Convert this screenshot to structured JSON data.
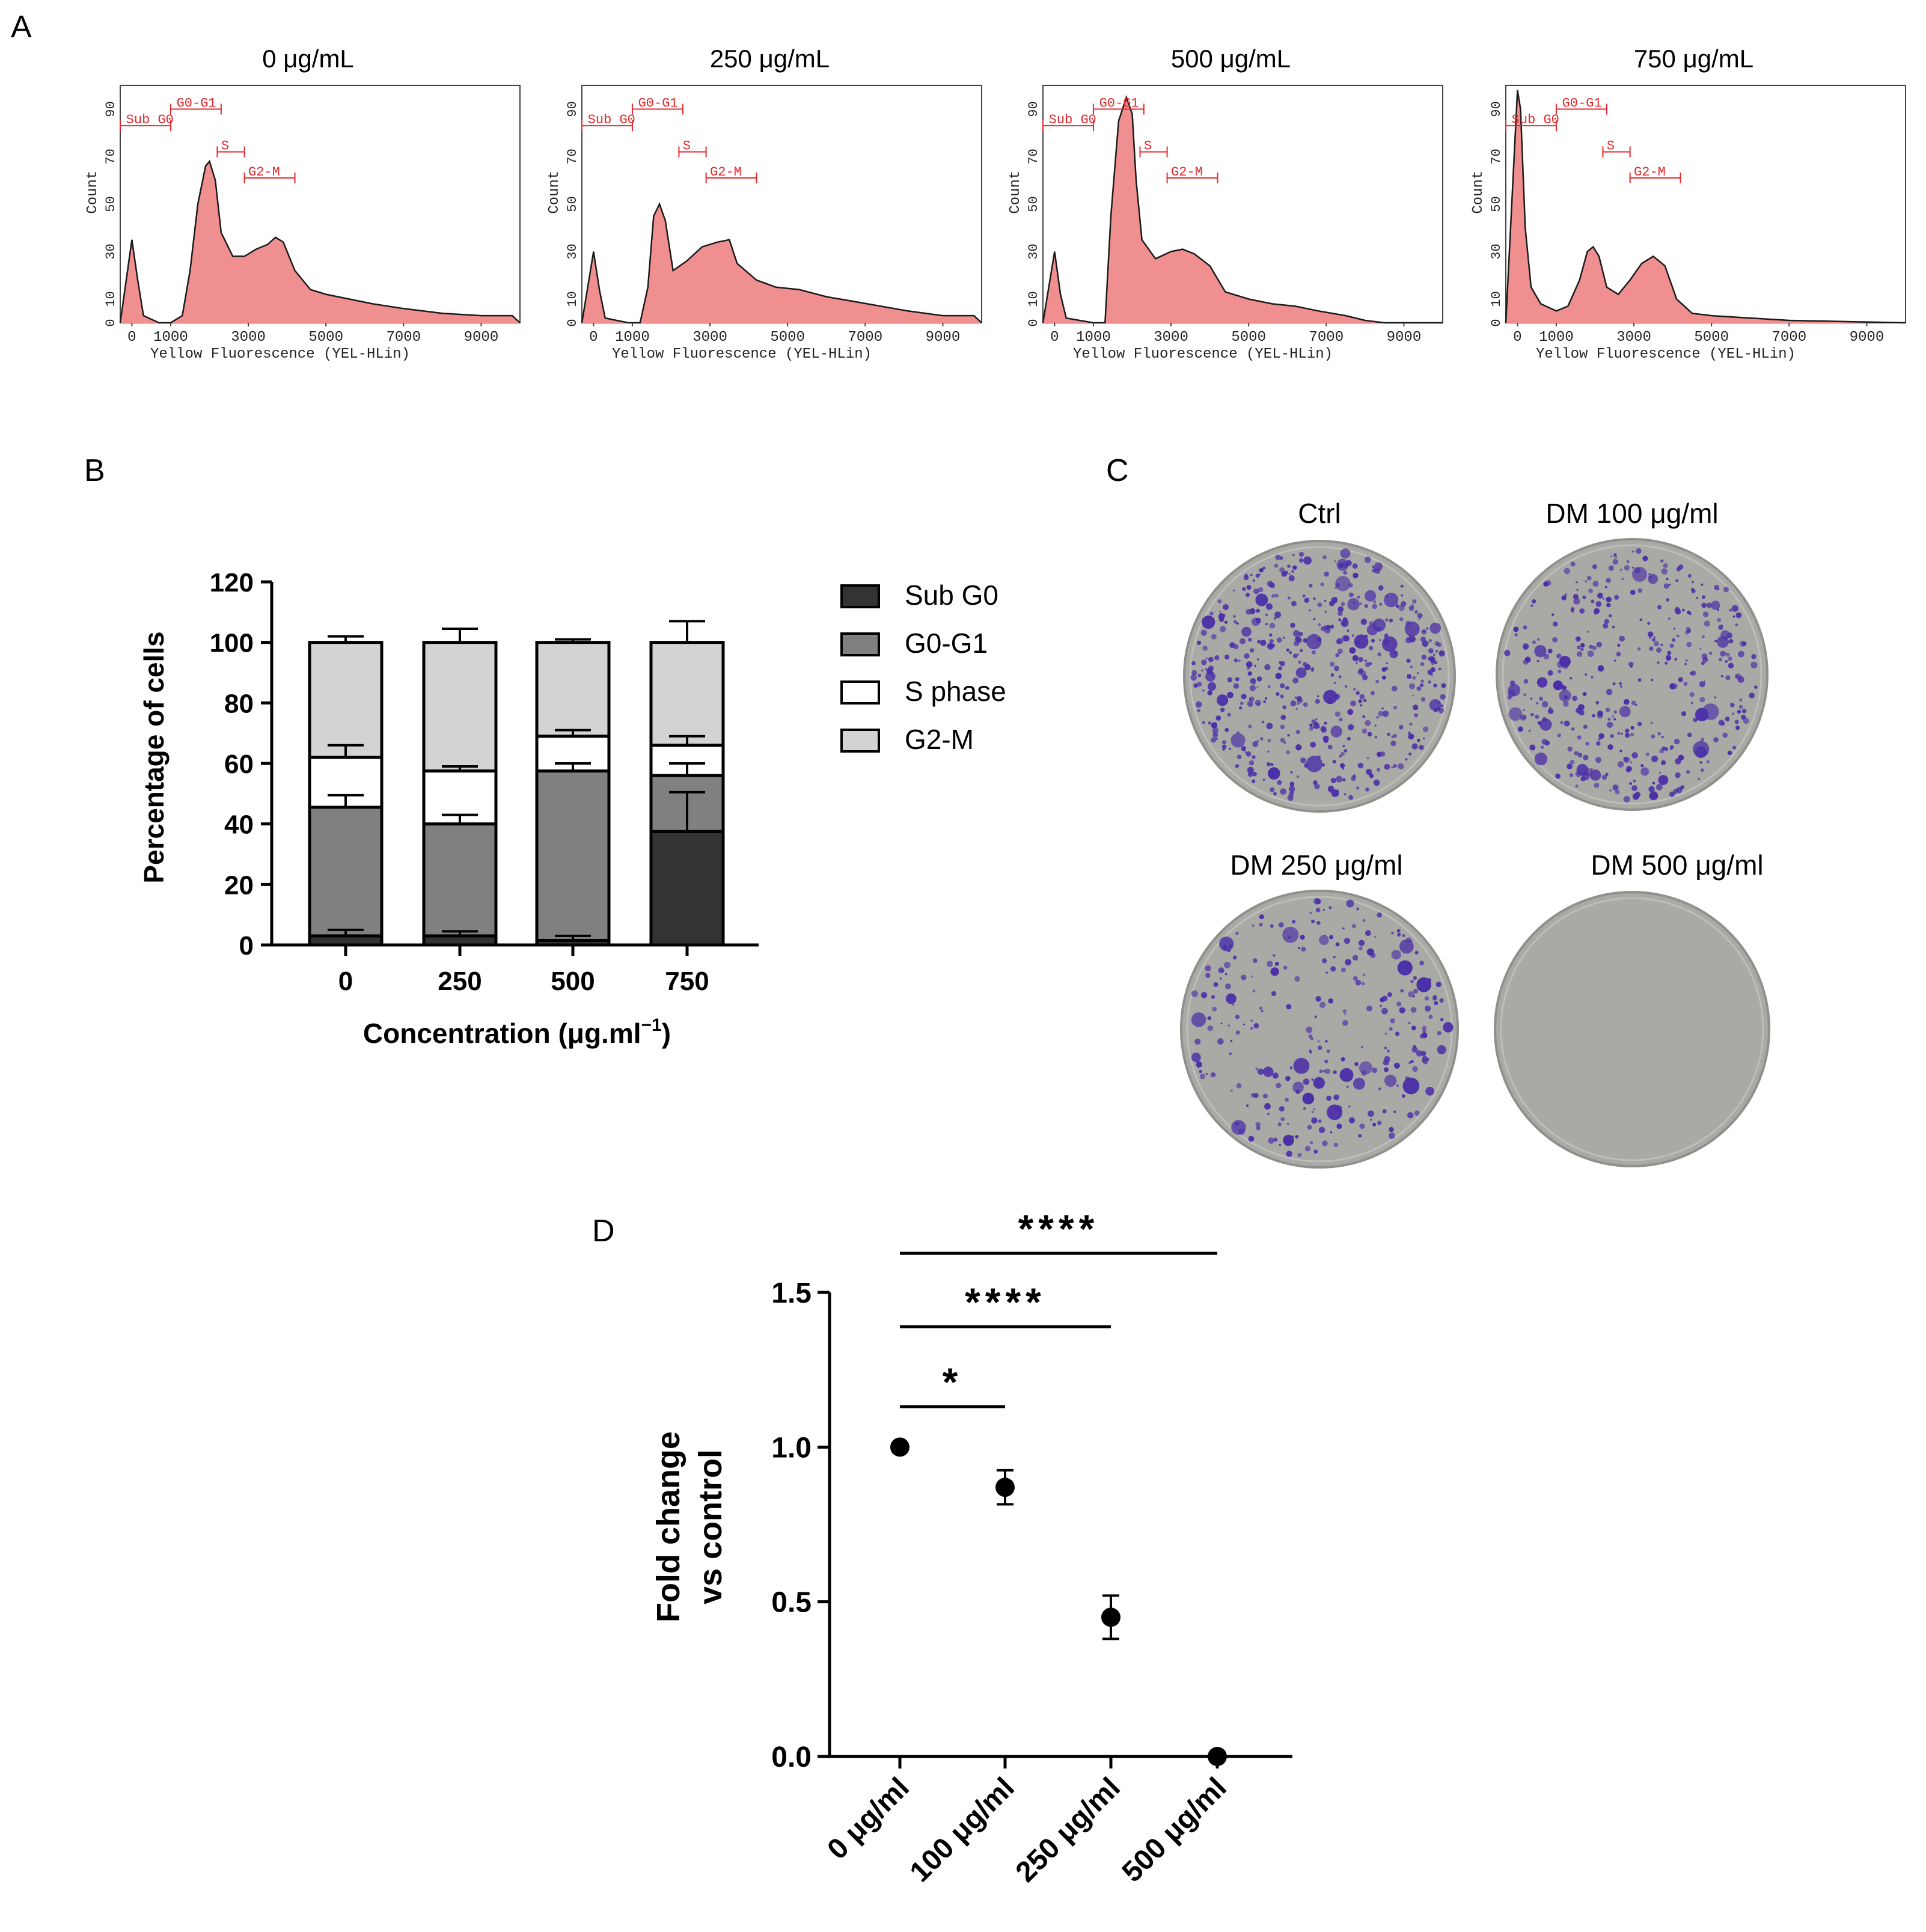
{
  "panel_labels": {
    "a": "A",
    "b": "B",
    "c": "C",
    "d": "D"
  },
  "colors": {
    "histogram_fill": "#f08f90",
    "histogram_line": "#1a1a1a",
    "gate": "#e8262a",
    "sub_g0": "#333333",
    "g0_g1": "#808080",
    "s_phase": "#ffffff",
    "g2_m": "#d3d3d3",
    "crystal_violet": "#4b2fa8",
    "dish": "#a9a9a5"
  },
  "panel_a": {
    "xlabel": "Yellow Fluorescence (YEL-HLin)",
    "ylabel": "Count",
    "xticks": [
      0,
      1000,
      3000,
      5000,
      7000,
      9000
    ],
    "yticks": [
      0,
      10,
      30,
      50,
      70,
      90
    ],
    "gates": [
      "Sub G0",
      "G0-G1",
      "S",
      "G2-M"
    ],
    "histograms": [
      {
        "title": "0 μg/mL",
        "points": [
          [
            -300,
            0
          ],
          [
            0,
            35
          ],
          [
            150,
            18
          ],
          [
            300,
            3
          ],
          [
            700,
            0
          ],
          [
            1000,
            0
          ],
          [
            1300,
            3
          ],
          [
            1500,
            22
          ],
          [
            1700,
            50
          ],
          [
            1900,
            66
          ],
          [
            2000,
            68
          ],
          [
            2150,
            60
          ],
          [
            2300,
            38
          ],
          [
            2600,
            28
          ],
          [
            2900,
            28
          ],
          [
            3200,
            31
          ],
          [
            3500,
            33
          ],
          [
            3700,
            36
          ],
          [
            3900,
            34
          ],
          [
            4200,
            22
          ],
          [
            4600,
            14
          ],
          [
            5000,
            12
          ],
          [
            5600,
            10
          ],
          [
            6200,
            8
          ],
          [
            7000,
            6
          ],
          [
            8000,
            4
          ],
          [
            9000,
            3
          ],
          [
            9800,
            3
          ],
          [
            10000,
            0
          ]
        ]
      },
      {
        "title": "250 μg/mL",
        "points": [
          [
            -300,
            0
          ],
          [
            0,
            30
          ],
          [
            150,
            14
          ],
          [
            300,
            2
          ],
          [
            900,
            0
          ],
          [
            1200,
            0
          ],
          [
            1400,
            15
          ],
          [
            1550,
            45
          ],
          [
            1700,
            50
          ],
          [
            1850,
            43
          ],
          [
            2050,
            22
          ],
          [
            2400,
            26
          ],
          [
            2800,
            32
          ],
          [
            3200,
            34
          ],
          [
            3500,
            35
          ],
          [
            3700,
            25
          ],
          [
            4200,
            18
          ],
          [
            4700,
            15
          ],
          [
            5300,
            14
          ],
          [
            6000,
            11
          ],
          [
            6700,
            9
          ],
          [
            7400,
            7
          ],
          [
            8100,
            5
          ],
          [
            9000,
            3
          ],
          [
            9800,
            3
          ],
          [
            10000,
            0
          ]
        ]
      },
      {
        "title": "500 μg/mL",
        "points": [
          [
            -300,
            0
          ],
          [
            0,
            30
          ],
          [
            150,
            12
          ],
          [
            300,
            2
          ],
          [
            1000,
            0
          ],
          [
            1300,
            0
          ],
          [
            1450,
            45
          ],
          [
            1650,
            85
          ],
          [
            1850,
            95
          ],
          [
            2000,
            88
          ],
          [
            2100,
            60
          ],
          [
            2250,
            35
          ],
          [
            2600,
            27
          ],
          [
            3000,
            30
          ],
          [
            3300,
            31
          ],
          [
            3600,
            29
          ],
          [
            4000,
            24
          ],
          [
            4400,
            13
          ],
          [
            5000,
            10
          ],
          [
            5600,
            8
          ],
          [
            6200,
            7
          ],
          [
            6800,
            5
          ],
          [
            7500,
            3
          ],
          [
            8000,
            1
          ],
          [
            8500,
            0
          ],
          [
            10000,
            0
          ]
        ]
      },
      {
        "title": "750 μg/mL",
        "points": [
          [
            -300,
            0
          ],
          [
            0,
            98
          ],
          [
            80,
            90
          ],
          [
            200,
            40
          ],
          [
            350,
            15
          ],
          [
            600,
            8
          ],
          [
            1000,
            5
          ],
          [
            1300,
            7
          ],
          [
            1600,
            18
          ],
          [
            1800,
            30
          ],
          [
            1950,
            32
          ],
          [
            2100,
            28
          ],
          [
            2300,
            15
          ],
          [
            2600,
            12
          ],
          [
            2900,
            18
          ],
          [
            3200,
            25
          ],
          [
            3500,
            28
          ],
          [
            3800,
            24
          ],
          [
            4100,
            10
          ],
          [
            4500,
            4
          ],
          [
            5000,
            3
          ],
          [
            6000,
            2
          ],
          [
            7000,
            1
          ],
          [
            10000,
            0
          ]
        ]
      }
    ]
  },
  "chart_data": [
    {
      "type": "bar",
      "stacked": true,
      "categories": [
        "0",
        "250",
        "500",
        "750"
      ],
      "series": [
        {
          "name": "Sub G0",
          "values": [
            3,
            3,
            1.5,
            37.5
          ],
          "errors": [
            2,
            1.5,
            1.5,
            13
          ]
        },
        {
          "name": "G0-G1",
          "values": [
            42.5,
            37,
            56,
            18.5
          ],
          "errors": [
            4,
            3,
            2.5,
            4
          ]
        },
        {
          "name": "S phase",
          "values": [
            16.5,
            17.5,
            11.5,
            10
          ],
          "errors": [
            4,
            1.5,
            2,
            3
          ]
        },
        {
          "name": "G2-M",
          "values": [
            38,
            42.5,
            31,
            34
          ],
          "errors": [
            2,
            4.5,
            1,
            7
          ]
        }
      ],
      "xlabel": "Concentration (μg.ml",
      "xlabel_sup": "−1",
      "xlabel_end": ")",
      "ylabel": "Percentage of cells",
      "ylim": [
        0,
        120
      ],
      "yticks": [
        0,
        20,
        40,
        60,
        80,
        100,
        120
      ],
      "legend_position": "right"
    },
    {
      "type": "scatter",
      "x": [
        "0 μg/ml",
        "100 μg/ml",
        "250 μg/ml",
        "500 μg/ml"
      ],
      "y": [
        1.0,
        0.87,
        0.45,
        0.0
      ],
      "errors": [
        0,
        0.055,
        0.07,
        0
      ],
      "ylabel_line1": "Fold change",
      "ylabel_line2": "vs control",
      "ylim": [
        0,
        1.5
      ],
      "yticks": [
        "0.0",
        "0.5",
        "1.0",
        "1.5"
      ],
      "significance": [
        {
          "from": 0,
          "to": 1,
          "label": "*"
        },
        {
          "from": 0,
          "to": 2,
          "label": "****"
        },
        {
          "from": 0,
          "to": 3,
          "label": "****"
        }
      ]
    }
  ],
  "panel_c": {
    "dishes": [
      {
        "title": "Ctrl",
        "colony_density": 1.0
      },
      {
        "title": "DM 100 μg/ml",
        "colony_density": 0.75
      },
      {
        "title": "DM 250 μg/ml",
        "colony_density": 0.55
      },
      {
        "title": "DM 500 μg/ml",
        "colony_density": 0.0
      }
    ]
  }
}
